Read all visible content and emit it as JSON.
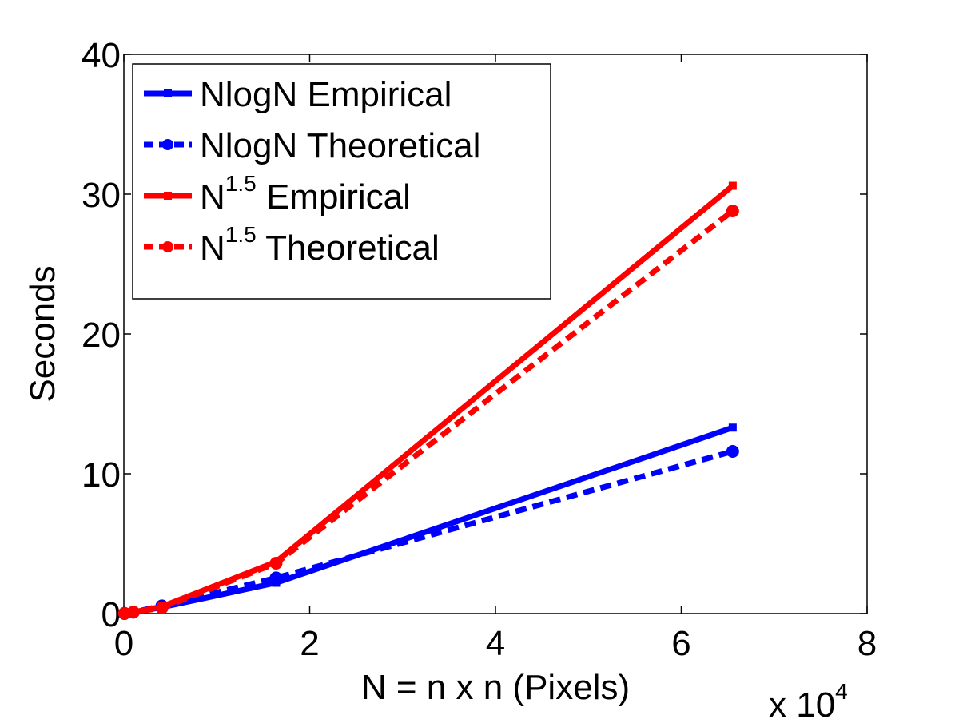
{
  "chart_data": {
    "type": "line",
    "title": "",
    "xlabel": "N = n x n (Pixels)",
    "ylabel": "Seconds",
    "x_multiplier": "x 10",
    "x_multiplier_exp": "4",
    "xlim": [
      0,
      8
    ],
    "ylim": [
      0,
      40
    ],
    "xticks": [
      "0",
      "2",
      "4",
      "6",
      "8"
    ],
    "yticks": [
      "0",
      "10",
      "20",
      "30",
      "40"
    ],
    "grid": false,
    "legend_position": "top-left",
    "series": [
      {
        "name": "NlogN Empirical",
        "legend_base": "NlogN Empirical",
        "legend_sup": "",
        "legend_rest": "",
        "color": "#0000ff",
        "dashed": false,
        "marker": "square",
        "x": [
          0.0064,
          0.1024,
          0.4096,
          1.6384,
          6.5536
        ],
        "y": [
          0.02,
          0.1,
          0.45,
          2.2,
          13.3
        ]
      },
      {
        "name": "NlogN Theoretical",
        "legend_base": "NlogN Theoretical",
        "legend_sup": "",
        "legend_rest": "",
        "color": "#0000ff",
        "dashed": true,
        "marker": "circle",
        "x": [
          0.0064,
          0.1024,
          0.4096,
          1.6384,
          6.5536
        ],
        "y": [
          0.0,
          0.1,
          0.55,
          2.55,
          11.6
        ]
      },
      {
        "name": "N^1.5 Empirical",
        "legend_base": "N",
        "legend_sup": "1.5",
        "legend_rest": " Empirical",
        "color": "#ff0000",
        "dashed": false,
        "marker": "square",
        "x": [
          0.0064,
          0.1024,
          0.4096,
          1.6384,
          6.5536
        ],
        "y": [
          0.02,
          0.1,
          0.5,
          3.7,
          30.6
        ]
      },
      {
        "name": "N^1.5 Theoretical",
        "legend_base": "N",
        "legend_sup": "1.5",
        "legend_rest": " Theoretical",
        "color": "#ff0000",
        "dashed": true,
        "marker": "circle",
        "x": [
          0.0064,
          0.1024,
          0.4096,
          1.6384,
          6.5536
        ],
        "y": [
          0.02,
          0.1,
          0.4,
          3.6,
          28.8
        ]
      }
    ]
  }
}
